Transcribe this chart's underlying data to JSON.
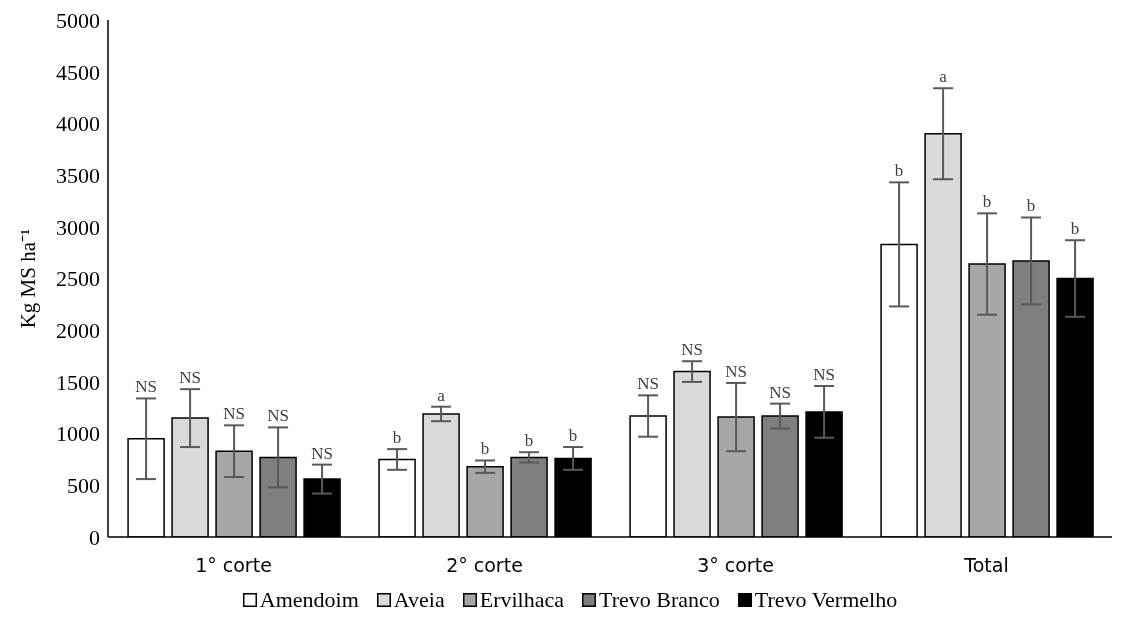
{
  "chart_data": {
    "type": "bar",
    "ylabel": "Kg MS ha⁻¹",
    "categories": [
      "1° corte",
      "2° corte",
      "3° corte",
      "Total"
    ],
    "series": [
      {
        "name": "Amendoim",
        "color": "#ffffff",
        "values": [
          950,
          750,
          1170,
          2830
        ],
        "errors": [
          390,
          100,
          200,
          600
        ]
      },
      {
        "name": "Aveia",
        "color": "#d9d9d9",
        "values": [
          1150,
          1190,
          1600,
          3900
        ],
        "errors": [
          280,
          70,
          100,
          440
        ]
      },
      {
        "name": "Ervilhaca",
        "color": "#a6a6a6",
        "values": [
          830,
          680,
          1160,
          2640
        ],
        "errors": [
          250,
          60,
          330,
          490
        ]
      },
      {
        "name": "Trevo Branco",
        "color": "#7f7f7f",
        "values": [
          770,
          770,
          1170,
          2670
        ],
        "errors": [
          290,
          50,
          120,
          420
        ]
      },
      {
        "name": "Trevo Vermelho",
        "color": "#000000",
        "values": [
          560,
          760,
          1210,
          2500
        ],
        "errors": [
          140,
          110,
          250,
          370
        ]
      }
    ],
    "ylim": [
      0,
      5000
    ],
    "yticks": [
      0,
      500,
      1000,
      1500,
      2000,
      2500,
      3000,
      3500,
      4000,
      4500,
      5000
    ],
    "grid": false,
    "legend": "bottom",
    "annotations": [
      "NS",
      "NS",
      "NS",
      "NS",
      "NS",
      "b",
      "a",
      "b",
      "b",
      "b",
      "NS",
      "NS",
      "NS",
      "NS",
      "NS",
      "b",
      "a",
      "b",
      "b",
      "b"
    ]
  }
}
